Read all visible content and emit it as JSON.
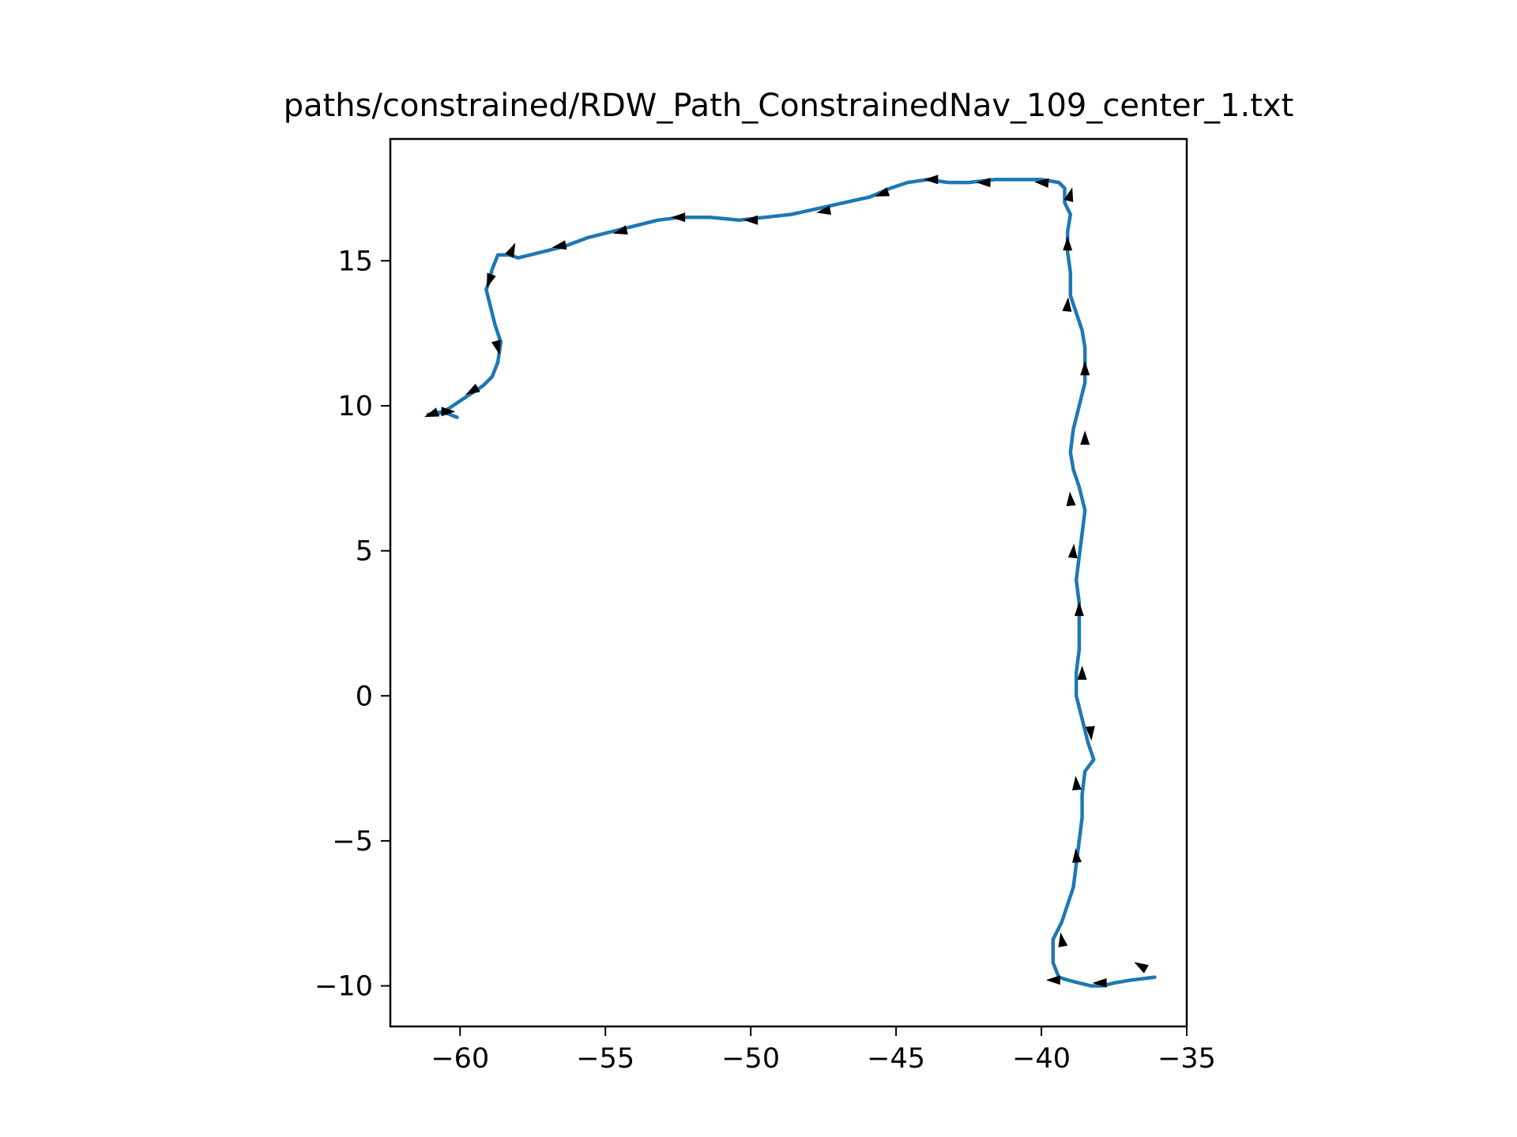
{
  "chart_data": {
    "type": "line",
    "title": "paths/constrained/RDW_Path_ConstrainedNav_109_center_1.txt",
    "xlabel": "",
    "ylabel": "",
    "xlim": [
      -62.4,
      -35.0
    ],
    "ylim": [
      -11.4,
      19.2
    ],
    "grid": false,
    "legend": "none",
    "xticks": [
      {
        "value": -60,
        "label": "−60"
      },
      {
        "value": -55,
        "label": "−55"
      },
      {
        "value": -50,
        "label": "−50"
      },
      {
        "value": -45,
        "label": "−45"
      },
      {
        "value": -40,
        "label": "−40"
      },
      {
        "value": -35,
        "label": "−35"
      }
    ],
    "yticks": [
      {
        "value": 15,
        "label": "15"
      },
      {
        "value": 10,
        "label": "10"
      },
      {
        "value": 5,
        "label": "5"
      },
      {
        "value": 0,
        "label": "0"
      },
      {
        "value": -5,
        "label": "−5"
      },
      {
        "value": -10,
        "label": "−10"
      }
    ],
    "series": [
      {
        "color": "#1f77b4",
        "x": [
          -36.1,
          -36.9,
          -37.5,
          -37.9,
          -38.3,
          -38.7,
          -39.1,
          -39.4,
          -39.6,
          -39.6,
          -39.3,
          -39.1,
          -38.9,
          -38.8,
          -38.7,
          -38.6,
          -38.6,
          -38.5,
          -38.2,
          -38.4,
          -38.6,
          -38.8,
          -38.8,
          -38.7,
          -38.7,
          -38.7,
          -38.8,
          -38.7,
          -38.6,
          -38.5,
          -38.7,
          -38.9,
          -39.0,
          -38.9,
          -38.7,
          -38.5,
          -38.5,
          -38.5,
          -38.6,
          -38.8,
          -39.0,
          -39.0,
          -39.1,
          -39.1,
          -39.0,
          -39.2,
          -39.2,
          -39.2,
          -39.3,
          -39.4,
          -40.0,
          -40.8,
          -41.6,
          -42.5,
          -43.2,
          -43.9,
          -44.6,
          -45.2,
          -45.9,
          -46.8,
          -47.7,
          -48.6,
          -49.5,
          -50.4,
          -51.4,
          -52.4,
          -53.2,
          -54.0,
          -54.8,
          -55.6,
          -56.4,
          -57.2,
          -57.6,
          -58.0,
          -58.3,
          -58.7,
          -58.9,
          -59.0,
          -59.1,
          -59.0,
          -58.9,
          -58.8,
          -58.6,
          -58.7,
          -58.9,
          -59.2,
          -59.5,
          -59.8,
          -60.1,
          -60.4,
          -60.8,
          -61.1,
          -60.6,
          -60.1
        ],
        "y": [
          -9.7,
          -9.8,
          -9.9,
          -10.0,
          -10.0,
          -9.9,
          -9.8,
          -9.7,
          -9.2,
          -8.4,
          -7.8,
          -7.2,
          -6.6,
          -5.8,
          -5.0,
          -4.2,
          -3.4,
          -2.6,
          -2.2,
          -1.6,
          -0.8,
          0.0,
          0.8,
          1.6,
          2.4,
          3.2,
          4.0,
          4.8,
          5.6,
          6.4,
          7.2,
          7.8,
          8.4,
          9.2,
          10.0,
          10.8,
          11.5,
          12.0,
          12.6,
          13.2,
          13.8,
          14.6,
          15.3,
          16.0,
          16.6,
          17.0,
          17.3,
          17.5,
          17.6,
          17.7,
          17.8,
          17.8,
          17.8,
          17.7,
          17.7,
          17.8,
          17.7,
          17.5,
          17.2,
          17.0,
          16.8,
          16.6,
          16.5,
          16.4,
          16.5,
          16.5,
          16.4,
          16.2,
          16.0,
          15.8,
          15.5,
          15.3,
          15.2,
          15.1,
          15.2,
          15.2,
          14.7,
          14.3,
          14.0,
          13.6,
          13.2,
          12.8,
          12.2,
          11.5,
          11.0,
          10.7,
          10.5,
          10.3,
          10.1,
          9.9,
          9.7,
          9.7,
          9.8,
          9.6
        ]
      }
    ],
    "arrows": [
      {
        "x": -36.6,
        "y": -9.3,
        "angle": 150
      },
      {
        "x": -38.0,
        "y": -9.9,
        "angle": 180
      },
      {
        "x": -39.6,
        "y": -9.8,
        "angle": 180
      },
      {
        "x": -39.3,
        "y": -8.4,
        "angle": 100
      },
      {
        "x": -38.8,
        "y": -5.5,
        "angle": 95
      },
      {
        "x": -38.8,
        "y": -3.0,
        "angle": 95
      },
      {
        "x": -38.3,
        "y": -1.3,
        "angle": 275
      },
      {
        "x": -38.6,
        "y": 0.8,
        "angle": 90
      },
      {
        "x": -38.7,
        "y": 3.0,
        "angle": 90
      },
      {
        "x": -38.9,
        "y": 5.0,
        "angle": 85
      },
      {
        "x": -39.0,
        "y": 6.8,
        "angle": 95
      },
      {
        "x": -38.5,
        "y": 8.9,
        "angle": 90
      },
      {
        "x": -38.5,
        "y": 11.3,
        "angle": 90
      },
      {
        "x": -39.1,
        "y": 13.5,
        "angle": 85
      },
      {
        "x": -39.1,
        "y": 15.6,
        "angle": 90
      },
      {
        "x": -39.0,
        "y": 17.3,
        "angle": 75
      },
      {
        "x": -40.0,
        "y": 17.7,
        "angle": 175
      },
      {
        "x": -42.0,
        "y": 17.7,
        "angle": 180
      },
      {
        "x": -43.8,
        "y": 17.8,
        "angle": 180
      },
      {
        "x": -45.5,
        "y": 17.3,
        "angle": 200
      },
      {
        "x": -47.5,
        "y": 16.7,
        "angle": 190
      },
      {
        "x": -50.0,
        "y": 16.4,
        "angle": 180
      },
      {
        "x": -52.5,
        "y": 16.5,
        "angle": 180
      },
      {
        "x": -54.5,
        "y": 16.0,
        "angle": 195
      },
      {
        "x": -56.6,
        "y": 15.5,
        "angle": 190
      },
      {
        "x": -58.2,
        "y": 15.4,
        "angle": 65
      },
      {
        "x": -59.0,
        "y": 14.3,
        "angle": 250
      },
      {
        "x": -58.7,
        "y": 12.0,
        "angle": 285
      },
      {
        "x": -59.6,
        "y": 10.5,
        "angle": 210
      },
      {
        "x": -60.4,
        "y": 9.8,
        "angle": 0
      },
      {
        "x": -61.0,
        "y": 9.7,
        "angle": 200
      }
    ]
  }
}
